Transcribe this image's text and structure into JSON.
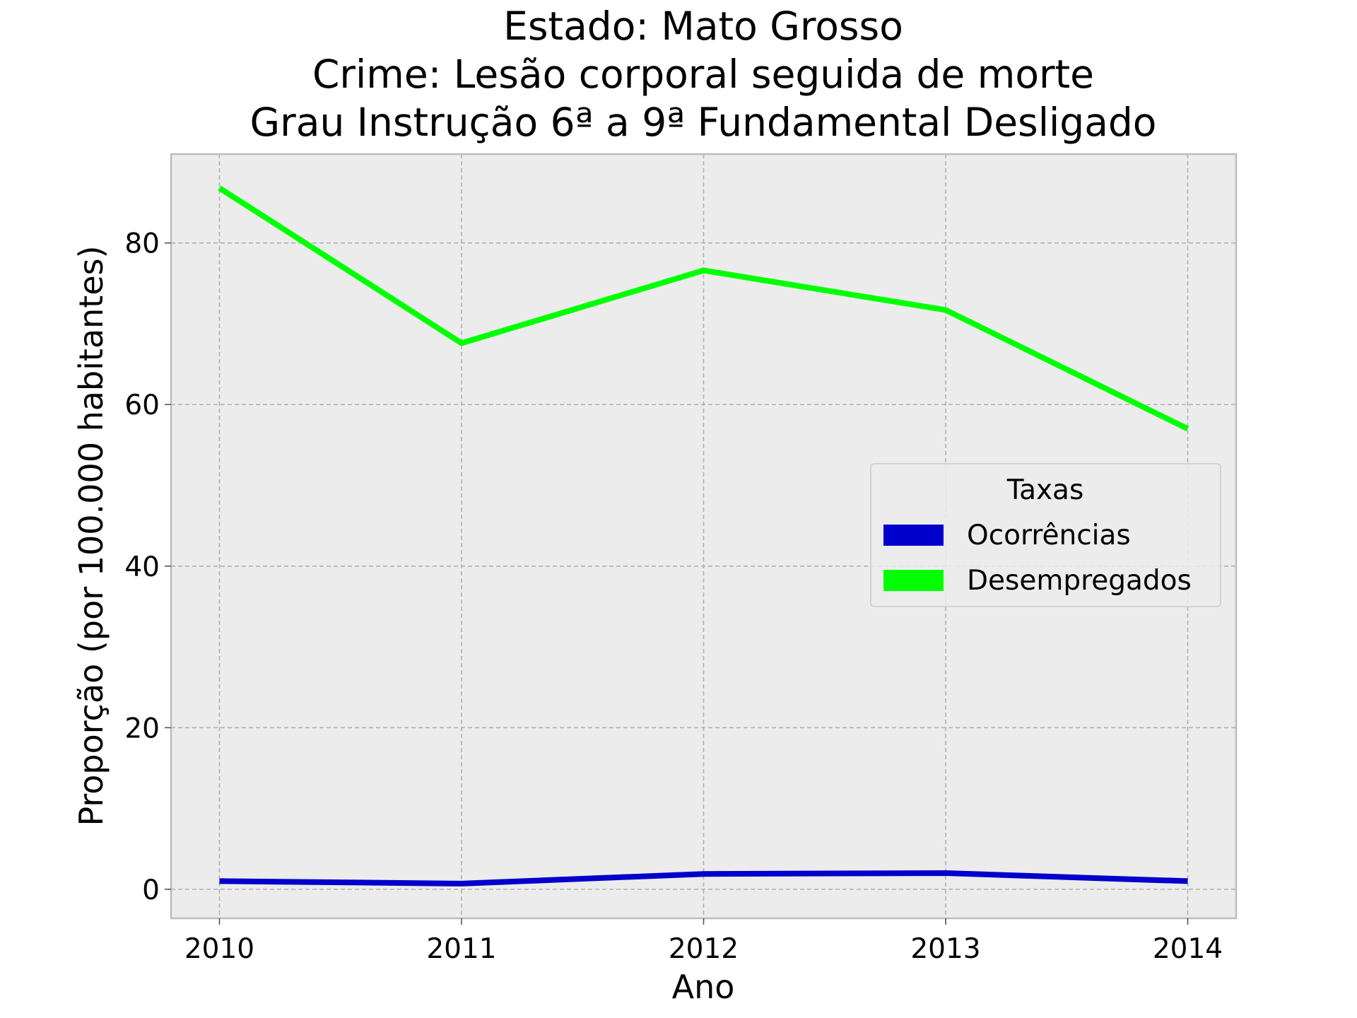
{
  "chart_data": {
    "type": "line",
    "title_lines": [
      "Estado: Mato Grosso",
      "Crime: Lesão corporal seguida de morte",
      "Grau Instrução  6ª a 9ª Fundamental   Desligado"
    ],
    "xlabel": "Ano",
    "ylabel": "Proporção (por 100.000 habitantes)",
    "x": [
      2010,
      2011,
      2012,
      2013,
      2014
    ],
    "x_tick_labels": [
      "2010",
      "2011",
      "2012",
      "2013",
      "2014"
    ],
    "y_ticks": [
      0,
      20,
      40,
      60,
      80
    ],
    "y_tick_labels": [
      "0",
      "20",
      "40",
      "60",
      "80"
    ],
    "xlim": [
      2009.8,
      2014.2
    ],
    "ylim": [
      -3.6,
      91
    ],
    "grid": true,
    "background": "#ececec",
    "legend": {
      "title": "Taxas",
      "position": "center-right"
    },
    "series": [
      {
        "name": "Ocorrências",
        "color": "#0000cc",
        "values": [
          1.0,
          0.7,
          1.9,
          2.0,
          1.0
        ]
      },
      {
        "name": "Desempregados",
        "color": "#00ff00",
        "values": [
          86.8,
          67.6,
          76.6,
          71.7,
          57.0
        ]
      }
    ]
  }
}
